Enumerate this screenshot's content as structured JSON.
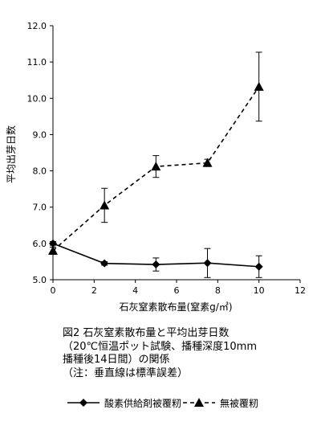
{
  "chart_data": {
    "type": "line",
    "ylabel": "平均出芽日数",
    "xlabel": "石灰窒素散布量(窒素g/㎡)",
    "xlim": [
      0,
      12
    ],
    "ylim": [
      5.0,
      12.0
    ],
    "x_ticks": [
      "0",
      "2",
      "4",
      "6",
      "8",
      "10",
      "12"
    ],
    "y_ticks": [
      "5.0",
      "6.0",
      "7.0",
      "8.0",
      "9.0",
      "10.0",
      "11.0",
      "12.0"
    ],
    "grid": false,
    "legend_position": "bottom",
    "caption": [
      "図2 石灰窒素散布量と平均出芽日数",
      "（20℃恒温ポット試験、播種深度10mm",
      "播種後14日間）の関係",
      "（注：垂直線は標準誤差）"
    ],
    "series": [
      {
        "name": "酸素供給剤被覆籾",
        "style": "solid",
        "marker": "diamond",
        "x": [
          0,
          2.5,
          5,
          7.5,
          10
        ],
        "y": [
          6.0,
          5.45,
          5.42,
          5.46,
          5.36
        ],
        "error": [
          0.05,
          0.05,
          0.18,
          0.4,
          0.3
        ]
      },
      {
        "name": "無被覆籾",
        "style": "dashed",
        "marker": "triangle",
        "x": [
          0,
          2.5,
          5,
          7.5,
          10
        ],
        "y": [
          5.8,
          7.05,
          8.12,
          8.22,
          10.32
        ],
        "error": [
          0.1,
          0.47,
          0.3,
          0.1,
          0.95
        ]
      }
    ]
  }
}
